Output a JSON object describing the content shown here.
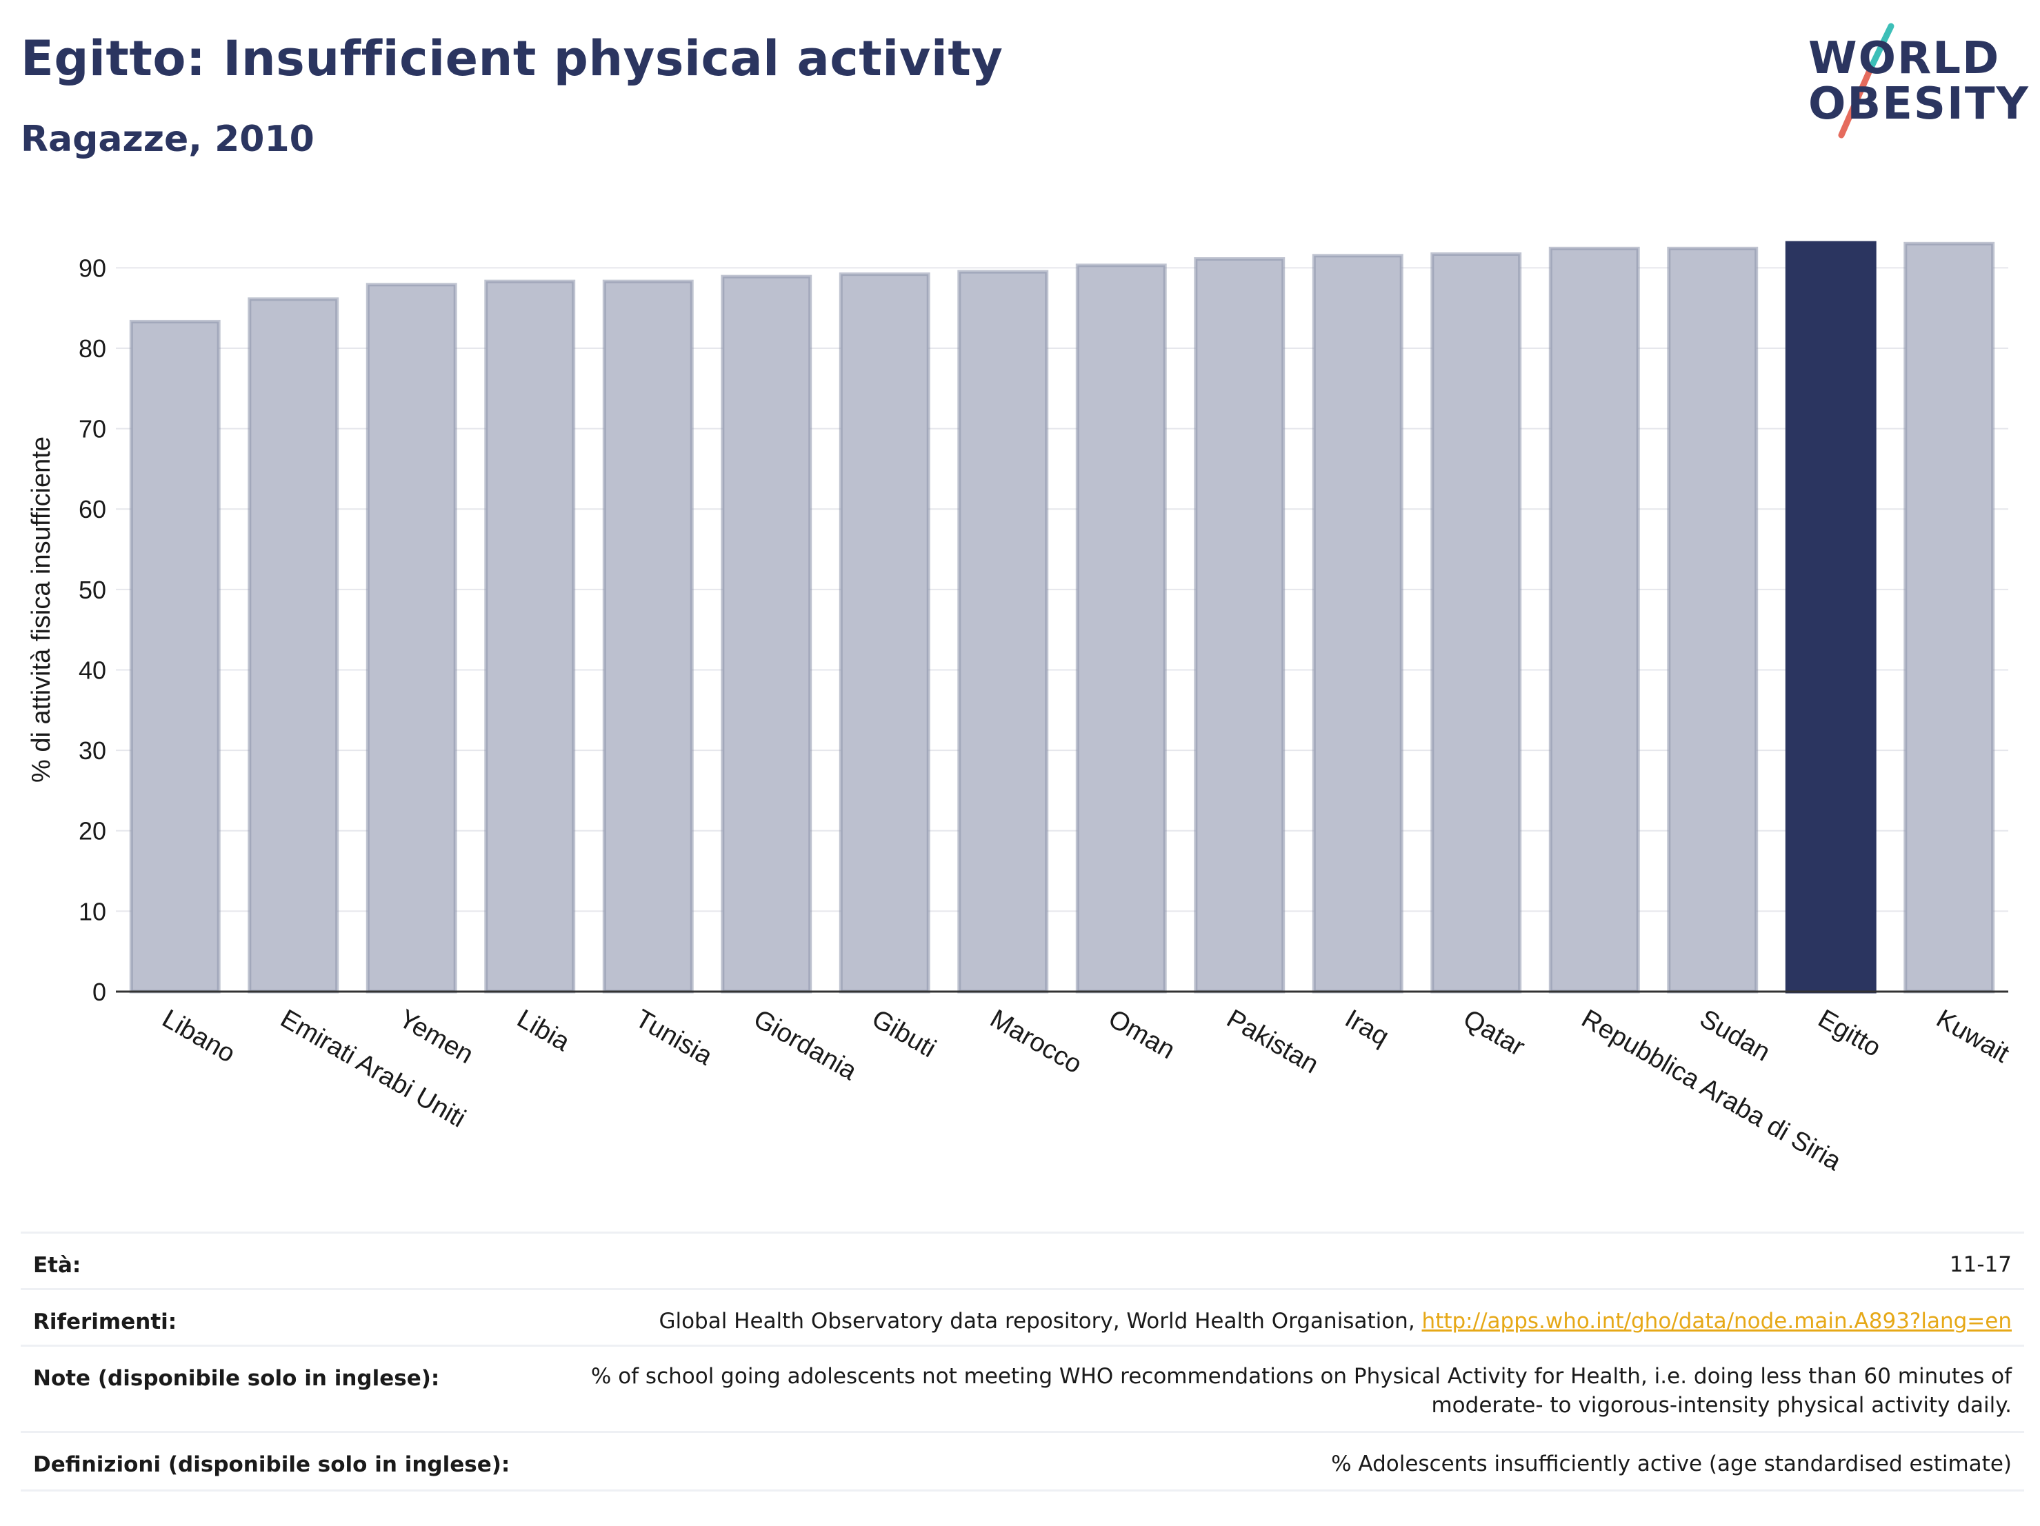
{
  "header": {
    "title": "Egitto: Insufficient physical activity",
    "subtitle": "Ragazze, 2010"
  },
  "logo": {
    "line1": "WORLD",
    "line2": "OBESITY"
  },
  "colors": {
    "bar": "#bcc0cf",
    "bar_border": "#8d93ab",
    "highlight": "#2b3560",
    "title": "#2b3560",
    "link": "#e6a817"
  },
  "chart_data": {
    "type": "bar",
    "categories": [
      "Libano",
      "Emirati Arabi Uniti",
      "Yemen",
      "Libia",
      "Tunisia",
      "Giordania",
      "Gibuti",
      "Marocco",
      "Oman",
      "Pakistan",
      "Iraq",
      "Qatar",
      "Repubblica Araba di Siria",
      "Sudan",
      "Egitto",
      "Kuwait"
    ],
    "values": [
      83.3,
      86.1,
      87.9,
      88.3,
      88.3,
      88.9,
      89.2,
      89.5,
      90.3,
      91.1,
      91.5,
      91.7,
      92.4,
      92.4,
      93.1,
      93.0
    ],
    "highlight": "Egitto",
    "ylabel": "% di attività fisica insufficiente",
    "xlabel": "",
    "ylim": [
      0,
      95
    ],
    "yticks": [
      0,
      10,
      20,
      30,
      40,
      50,
      60,
      70,
      80,
      90
    ],
    "grid": true
  },
  "meta": {
    "age_label": "Età:",
    "age_value": "11-17",
    "refs_label": "Riferimenti:",
    "refs_text": "Global Health Observatory data repository, World Health Organisation, ",
    "refs_link": "http://apps.who.int/gho/data/node.main.A893?lang=en",
    "notes_label": "Note (disponibile solo in inglese):",
    "notes_line1": "% of school going adolescents not meeting WHO recommendations on Physical Activity for Health, i.e. doing less than 60 minutes of",
    "notes_line2": "moderate- to vigorous-intensity physical activity daily.",
    "defs_label": "Definizioni (disponibile solo in inglese):",
    "defs_value": "% Adolescents insufficiently active (age standardised estimate)"
  }
}
